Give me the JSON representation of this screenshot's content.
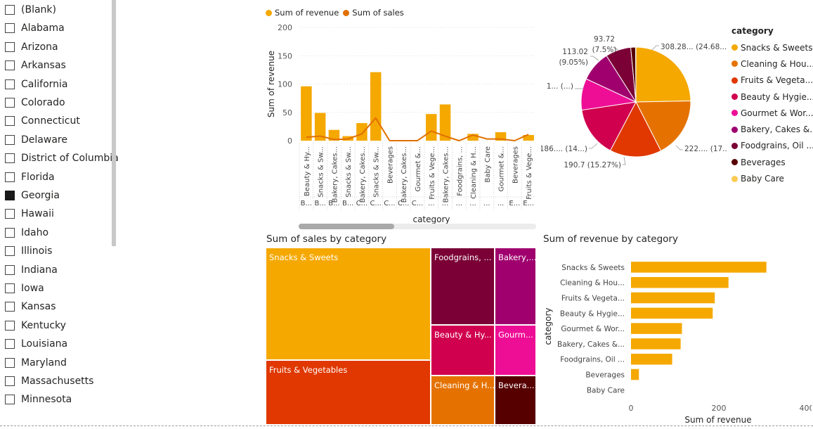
{
  "slicer": {
    "items": [
      {
        "label": "(Blank)",
        "checked": false
      },
      {
        "label": "Alabama",
        "checked": false
      },
      {
        "label": "Arizona",
        "checked": false
      },
      {
        "label": "Arkansas",
        "checked": false
      },
      {
        "label": "California",
        "checked": false
      },
      {
        "label": "Colorado",
        "checked": false
      },
      {
        "label": "Connecticut",
        "checked": false
      },
      {
        "label": "Delaware",
        "checked": false
      },
      {
        "label": "District of Columbia",
        "checked": false
      },
      {
        "label": "Florida",
        "checked": false
      },
      {
        "label": "Georgia",
        "checked": true
      },
      {
        "label": "Hawaii",
        "checked": false
      },
      {
        "label": "Idaho",
        "checked": false
      },
      {
        "label": "Illinois",
        "checked": false
      },
      {
        "label": "Indiana",
        "checked": false
      },
      {
        "label": "Iowa",
        "checked": false
      },
      {
        "label": "Kansas",
        "checked": false
      },
      {
        "label": "Kentucky",
        "checked": false
      },
      {
        "label": "Louisiana",
        "checked": false
      },
      {
        "label": "Maryland",
        "checked": false
      },
      {
        "label": "Massachusetts",
        "checked": false
      },
      {
        "label": "Minnesota",
        "checked": false
      }
    ]
  },
  "combo": {
    "legend": [
      {
        "label": "Sum of revenue",
        "color": "#F5A800"
      },
      {
        "label": "Sum of sales",
        "color": "#E07000"
      }
    ],
    "ylabel": "Sum of revenue",
    "xlabel": "category",
    "yticks": [
      "200",
      "150",
      "100",
      "50",
      "0"
    ]
  },
  "pie": {
    "legend_title": "category",
    "labels": {
      "snacks": "308.28... (24.68...)",
      "cleaning": "222.... (17...)",
      "fruits": "190.7 (15.27%)",
      "beauty": "186.... (14...)",
      "gourmet": "1... (...)",
      "bakery_v": "113.02",
      "bakery_p": "(9.05%)",
      "food_v": "93.72",
      "food_p": "(7.5%)"
    }
  },
  "treemap": {
    "title": "Sum of sales by category",
    "cells": [
      {
        "label": "Snacks & Sweets",
        "color": "#F5A800"
      },
      {
        "label": "Fruits & Vegetables",
        "color": "#E03800"
      },
      {
        "label": "Foodgrains, ...",
        "color": "#7A0036"
      },
      {
        "label": "Bakery,...",
        "color": "#A0006E"
      },
      {
        "label": "Beauty & Hy...",
        "color": "#D0004E"
      },
      {
        "label": "Gourm...",
        "color": "#EE0E96"
      },
      {
        "label": "Cleaning & H...",
        "color": "#E57200"
      },
      {
        "label": "Bevera...",
        "color": "#560000"
      }
    ]
  },
  "hbar": {
    "title": "Sum of revenue by category",
    "ylabel": "category",
    "xlabel": "Sum of revenue",
    "xticks": [
      "0",
      "200",
      "400"
    ]
  },
  "chart_data": [
    {
      "type": "bar",
      "chart": "combo",
      "ylabel": "Sum of revenue",
      "xlabel": "category",
      "ylim": [
        0,
        200
      ],
      "categories": [
        {
          "top": "Beauty & Hy...",
          "bottom": "B..."
        },
        {
          "top": "Snacks & Sw...",
          "bottom": "B..."
        },
        {
          "top": "Bakery, Cakes...",
          "bottom": "B..."
        },
        {
          "top": "Snacks & Sw...",
          "bottom": "B..."
        },
        {
          "top": "Bakery, Cakes...",
          "bottom": "C..."
        },
        {
          "top": "Snacks & Sw...",
          "bottom": "C..."
        },
        {
          "top": "Beverages",
          "bottom": "C..."
        },
        {
          "top": "Bakery, Cakes...",
          "bottom": "C..."
        },
        {
          "top": "Gourmet &...",
          "bottom": "C..."
        },
        {
          "top": "Fruits & Vege...",
          "bottom": "..."
        },
        {
          "top": "Bakery, Cakes...",
          "bottom": "..."
        },
        {
          "top": "Foodgrains, ...",
          "bottom": "..."
        },
        {
          "top": "Cleaning & H...",
          "bottom": "..."
        },
        {
          "top": "Baby Care",
          "bottom": "..."
        },
        {
          "top": "Gourmet &...",
          "bottom": "..."
        },
        {
          "top": "Beverages",
          "bottom": "E..."
        },
        {
          "top": "Fruits & Vege...",
          "bottom": "E..."
        }
      ],
      "series": [
        {
          "name": "Sum of revenue",
          "values": [
            96,
            49,
            19,
            8,
            31,
            121,
            0,
            0,
            0,
            47,
            64,
            0,
            12,
            0,
            15,
            0,
            10
          ]
        },
        {
          "name": "Sum of sales",
          "values": [
            6,
            8,
            2,
            3,
            12,
            40,
            0,
            0,
            0,
            17,
            8,
            0,
            10,
            3,
            3,
            0,
            11
          ]
        }
      ]
    },
    {
      "type": "pie",
      "chart": "pie",
      "legend_title": "category",
      "legend": "right",
      "slices": [
        {
          "name": "Snacks & Sweets",
          "value": 308.28,
          "color": "#F5A800"
        },
        {
          "name": "Cleaning & Hou...",
          "value": 222,
          "color": "#E57200"
        },
        {
          "name": "Fruits & Vegeta...",
          "value": 190.7,
          "color": "#E03800"
        },
        {
          "name": "Beauty & Hygie...",
          "value": 186,
          "color": "#D0004E"
        },
        {
          "name": "Gourmet & Wor...",
          "value": 116,
          "color": "#EE0E96"
        },
        {
          "name": "Bakery, Cakes &...",
          "value": 113.02,
          "color": "#A0006E"
        },
        {
          "name": "Foodgrains, Oil ...",
          "value": 93.72,
          "color": "#7A0036"
        },
        {
          "name": "Beverages",
          "value": 18,
          "color": "#560000"
        },
        {
          "name": "Baby Care",
          "value": 1,
          "color": "#FBCB53"
        }
      ]
    },
    {
      "type": "treemap",
      "chart": "treemap",
      "title": "Sum of sales by category",
      "values_note": "sizes shown by area"
    },
    {
      "type": "bar",
      "chart": "hbar",
      "orientation": "horizontal",
      "title": "Sum of revenue by category",
      "xlabel": "Sum of revenue",
      "ylabel": "category",
      "xlim": [
        0,
        400
      ],
      "categories": [
        "Snacks & Sweets",
        "Cleaning & Hou...",
        "Fruits & Vegeta...",
        "Beauty & Hygie...",
        "Gourmet & Wor...",
        "Bakery, Cakes &...",
        "Foodgrains, Oil ...",
        "Beverages",
        "Baby Care"
      ],
      "values": [
        308.28,
        222,
        190.7,
        186,
        116,
        113.02,
        93.72,
        18,
        1
      ]
    }
  ]
}
